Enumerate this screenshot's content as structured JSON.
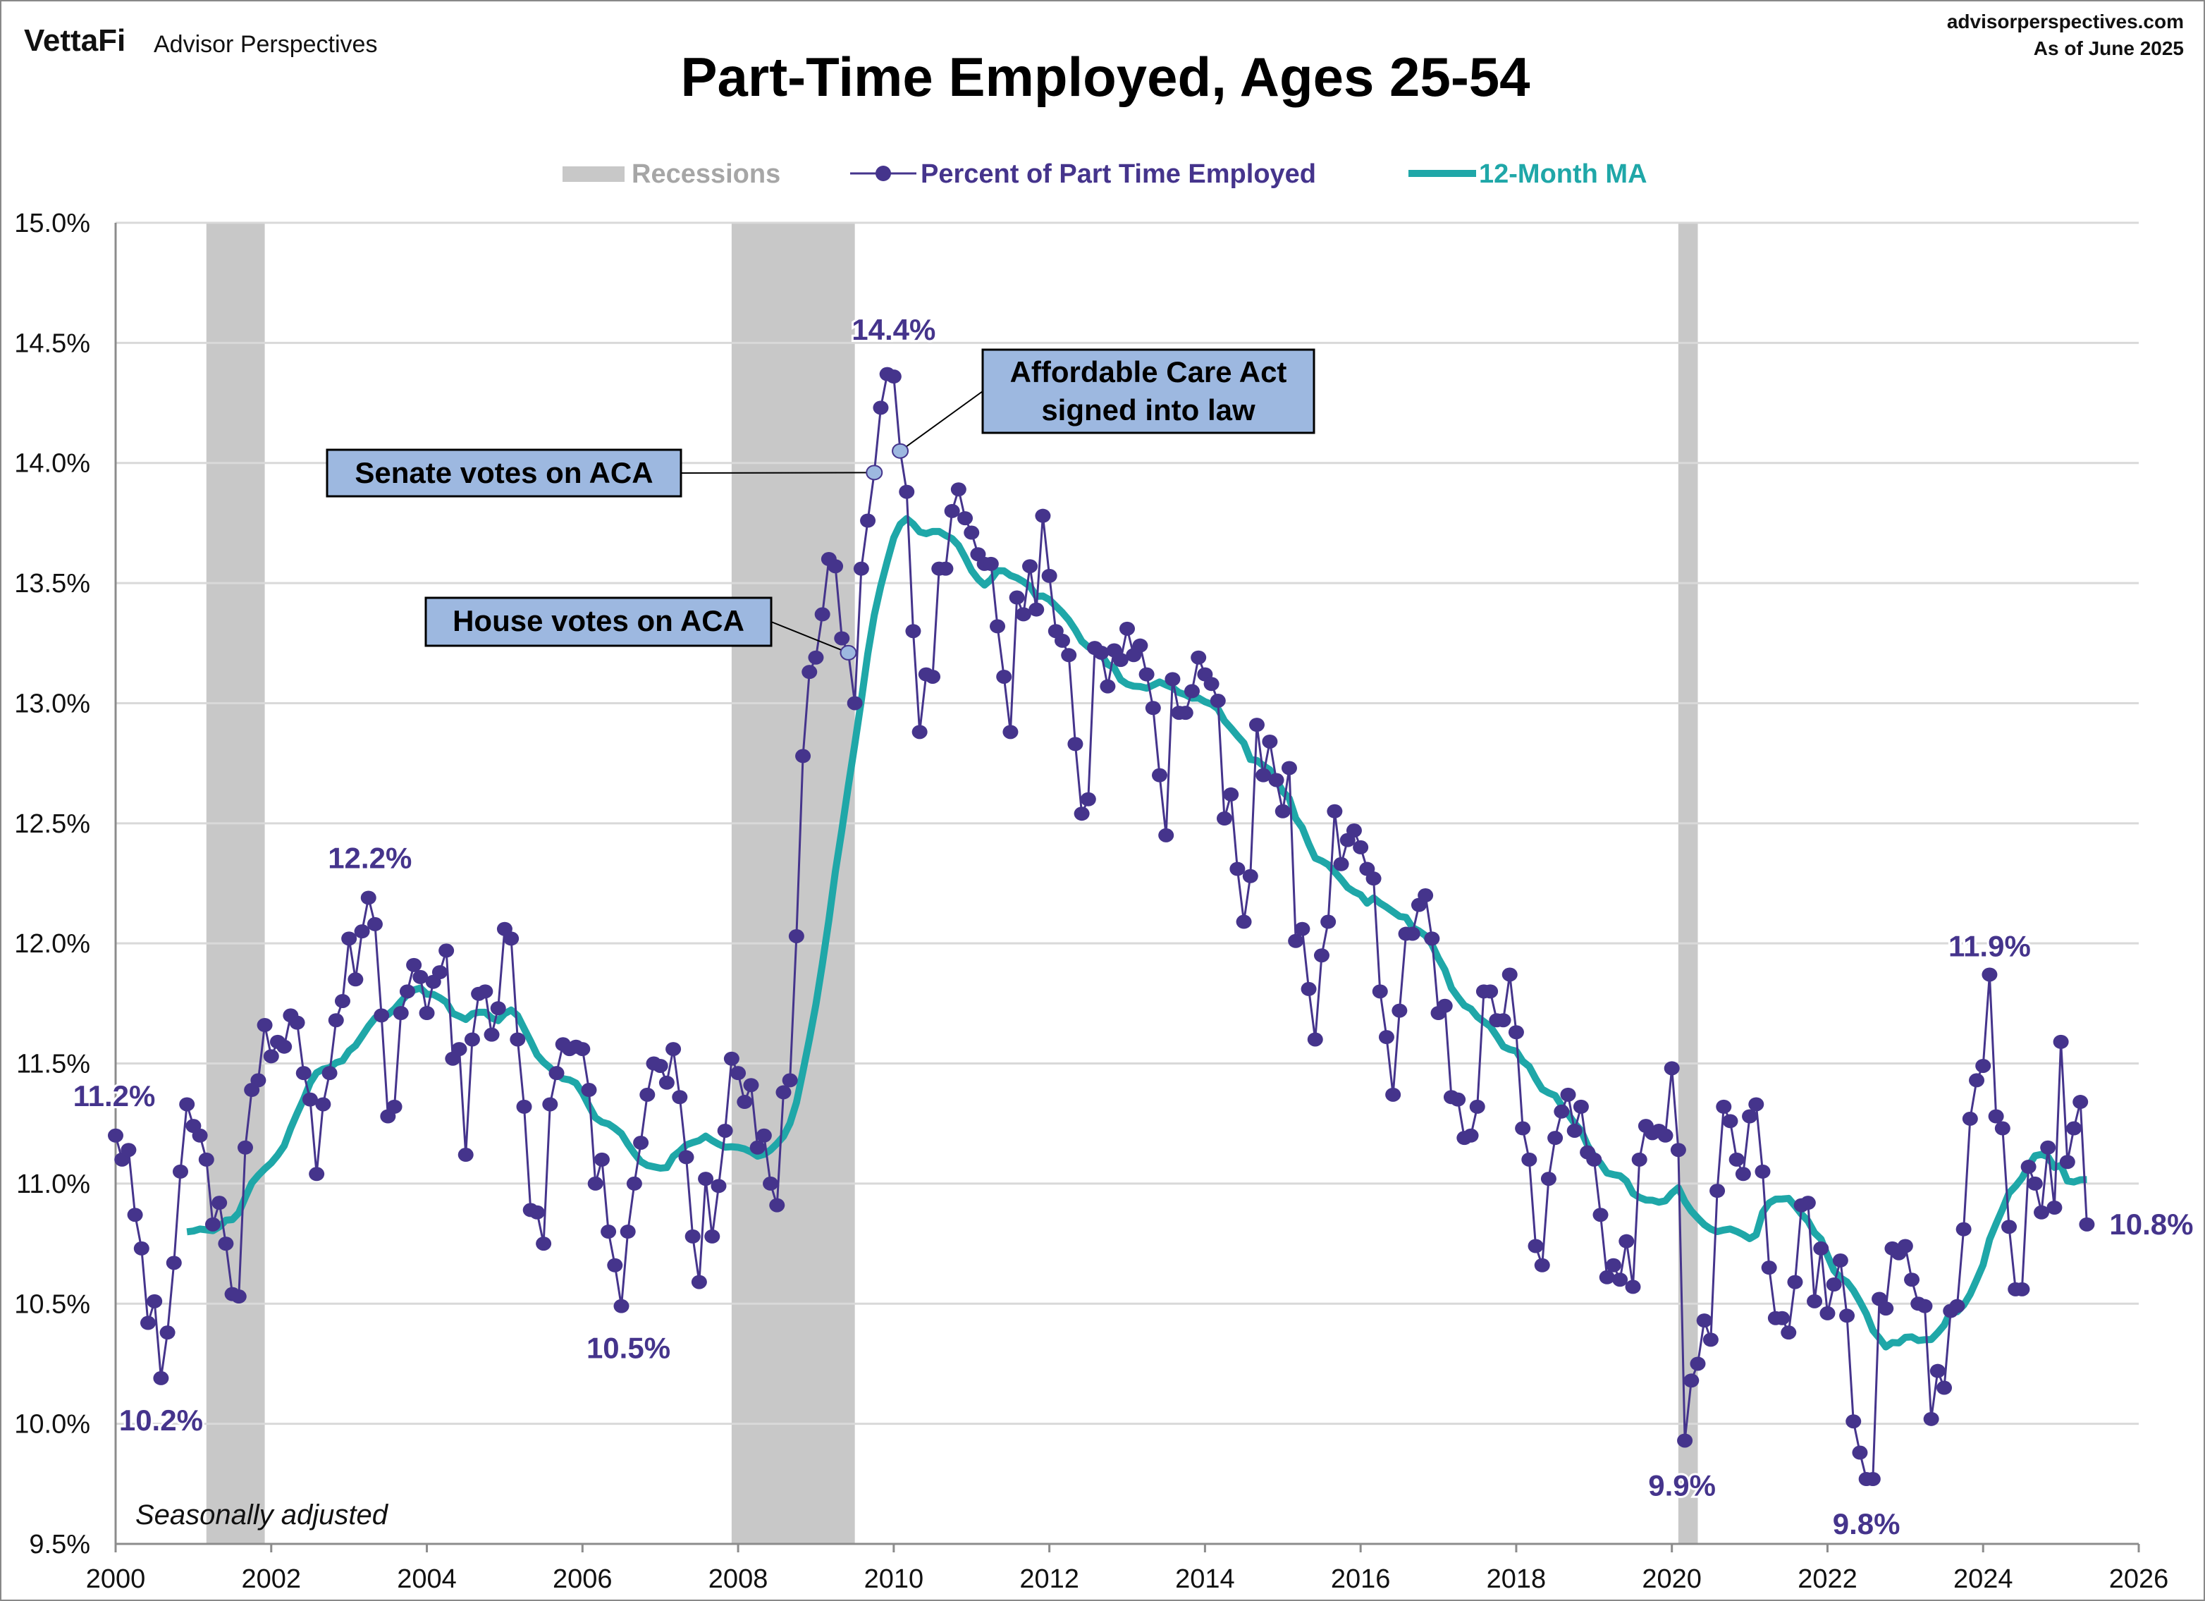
{
  "header": {
    "logo": "VettaFi",
    "brand": "Advisor Perspectives",
    "site": "advisorperspectives.com",
    "as_of": "As of June 2025"
  },
  "colors": {
    "series": "#45348c",
    "ma": "#1fa7a8",
    "recession": "#c8c8c8",
    "highlight_point": "#9db8e0",
    "callout_fill": "#9db8e0",
    "grid": "#d9d9d9"
  },
  "chart_data": {
    "type": "line",
    "title": "Part-Time Employed, Ages 25-54",
    "note": "Seasonally adjusted",
    "start": "2000-01",
    "frequency": "monthly",
    "xlim": [
      2000,
      2026
    ],
    "ylim": [
      9.5,
      15.0
    ],
    "y_unit": "%",
    "grid": "horizontal",
    "legend_placement": "top-center",
    "x_ticks": [
      "2000",
      "2002",
      "2004",
      "2006",
      "2008",
      "2010",
      "2012",
      "2014",
      "2016",
      "2018",
      "2020",
      "2022",
      "2024",
      "2026"
    ],
    "y_ticks": [
      "9.5%",
      "10.0%",
      "10.5%",
      "11.0%",
      "11.5%",
      "12.0%",
      "12.5%",
      "13.0%",
      "13.5%",
      "14.0%",
      "14.5%",
      "15.0%"
    ],
    "legend": {
      "recessions": "Recessions",
      "series": "Percent of Part Time Employed",
      "ma": "12-Month MA"
    },
    "recessions": [
      {
        "start": "2001-03",
        "end": "2001-11"
      },
      {
        "start": "2007-12",
        "end": "2009-06"
      },
      {
        "start": "2020-02",
        "end": "2020-04"
      }
    ],
    "series": [
      {
        "name": "Percent of Part Time Employed",
        "values": [
          11.2,
          11.1,
          11.14,
          10.87,
          10.73,
          10.42,
          10.51,
          10.19,
          10.38,
          10.67,
          11.05,
          11.33,
          11.24,
          11.2,
          11.1,
          10.83,
          10.92,
          10.75,
          10.54,
          10.53,
          11.15,
          11.39,
          11.43,
          11.66,
          11.53,
          11.59,
          11.57,
          11.7,
          11.67,
          11.46,
          11.35,
          11.04,
          11.33,
          11.46,
          11.68,
          11.76,
          12.02,
          11.85,
          12.05,
          12.19,
          12.08,
          11.7,
          11.28,
          11.32,
          11.71,
          11.8,
          11.91,
          11.86,
          11.71,
          11.84,
          11.88,
          11.97,
          11.52,
          11.56,
          11.12,
          11.6,
          11.79,
          11.8,
          11.62,
          11.73,
          12.06,
          12.02,
          11.6,
          11.32,
          10.89,
          10.88,
          10.75,
          11.33,
          11.46,
          11.58,
          11.56,
          11.57,
          11.56,
          11.39,
          11.0,
          11.1,
          10.8,
          10.66,
          10.49,
          10.8,
          11.0,
          11.17,
          11.37,
          11.5,
          11.49,
          11.42,
          11.56,
          11.36,
          11.11,
          10.78,
          10.59,
          11.02,
          10.78,
          10.99,
          11.22,
          11.52,
          11.46,
          11.34,
          11.41,
          11.15,
          11.2,
          11.0,
          10.91,
          11.38,
          11.43,
          12.03,
          12.78,
          13.13,
          13.19,
          13.37,
          13.6,
          13.57,
          13.27,
          13.21,
          13.0,
          13.56,
          13.76,
          13.96,
          14.23,
          14.37,
          14.36,
          14.05,
          13.88,
          13.3,
          12.88,
          13.12,
          13.11,
          13.56,
          13.56,
          13.8,
          13.89,
          13.77,
          13.71,
          13.62,
          13.58,
          13.58,
          13.32,
          13.11,
          12.88,
          13.44,
          13.37,
          13.57,
          13.39,
          13.78,
          13.53,
          13.3,
          13.26,
          13.2,
          12.83,
          12.54,
          12.6,
          13.23,
          13.21,
          13.07,
          13.22,
          13.18,
          13.31,
          13.2,
          13.24,
          13.12,
          12.98,
          12.7,
          12.45,
          13.1,
          12.96,
          12.96,
          13.05,
          13.19,
          13.12,
          13.08,
          13.01,
          12.52,
          12.62,
          12.31,
          12.09,
          12.28,
          12.91,
          12.7,
          12.84,
          12.68,
          12.55,
          12.73,
          12.01,
          12.06,
          11.81,
          11.6,
          11.95,
          12.09,
          12.55,
          12.33,
          12.43,
          12.47,
          12.4,
          12.31,
          12.27,
          11.8,
          11.61,
          11.37,
          11.72,
          12.04,
          12.04,
          12.16,
          12.2,
          12.02,
          11.71,
          11.74,
          11.36,
          11.35,
          11.19,
          11.2,
          11.32,
          11.8,
          11.8,
          11.68,
          11.68,
          11.87,
          11.63,
          11.23,
          11.1,
          10.74,
          10.66,
          11.02,
          11.19,
          11.3,
          11.37,
          11.22,
          11.32,
          11.13,
          11.1,
          10.87,
          10.61,
          10.66,
          10.6,
          10.76,
          10.57,
          11.1,
          11.24,
          11.21,
          11.22,
          11.2,
          11.48,
          11.14,
          9.93,
          10.18,
          10.25,
          10.43,
          10.35,
          10.97,
          11.32,
          11.26,
          11.1,
          11.04,
          11.28,
          11.33,
          11.05,
          10.65,
          10.44,
          10.44,
          10.38,
          10.59,
          10.91,
          10.92,
          10.51,
          10.73,
          10.46,
          10.58,
          10.68,
          10.45,
          10.01,
          9.88,
          9.77,
          9.77,
          10.52,
          10.48,
          10.73,
          10.71,
          10.74,
          10.6,
          10.5,
          10.49,
          10.02,
          10.22,
          10.15,
          10.47,
          10.49,
          10.81,
          11.27,
          11.43,
          11.49,
          11.87,
          11.28,
          11.23,
          10.82,
          10.56,
          10.56,
          11.07,
          11.0,
          10.88,
          11.15,
          10.9,
          11.59,
          11.09,
          11.23,
          11.34,
          10.83
        ]
      },
      {
        "name": "12-Month MA",
        "derived_from": "Percent of Part Time Employed",
        "window_months": 12
      }
    ],
    "annotations": [
      {
        "text": "14.4%",
        "date": "2010-01"
      },
      {
        "text": "12.2%",
        "date": "2003-04"
      },
      {
        "text": "11.2%",
        "date": "2000-01"
      },
      {
        "text": "10.2%",
        "date": "2000-08"
      },
      {
        "text": "10.5%",
        "date": "2006-07"
      },
      {
        "text": "9.9%",
        "date": "2020-03"
      },
      {
        "text": "9.8%",
        "date": "2022-07"
      },
      {
        "text": "11.9%",
        "date": "2024-02"
      },
      {
        "text": "10.8%",
        "date": "2025-05"
      }
    ],
    "callouts": [
      {
        "text": [
          "Senate votes on ACA"
        ],
        "date": "2009-10"
      },
      {
        "text": [
          "House votes on ACA"
        ],
        "date": "2009-06"
      },
      {
        "text": [
          "Affordable Care Act",
          "signed into law"
        ],
        "date": "2010-02"
      }
    ]
  }
}
